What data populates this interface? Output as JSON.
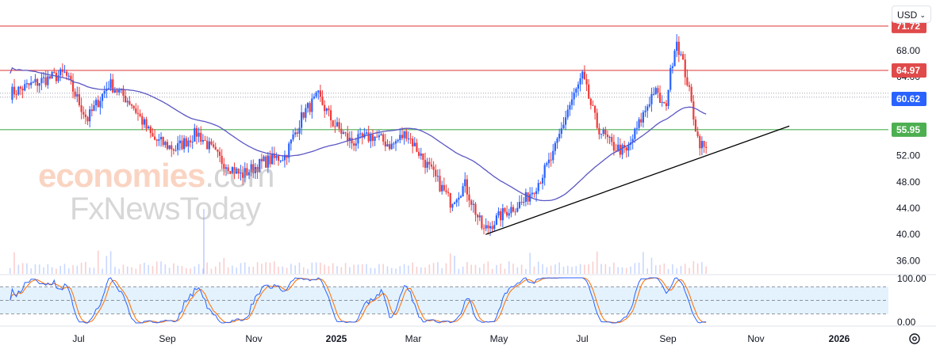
{
  "toolbar": {
    "currency": "USD"
  },
  "watermark": {
    "line1_brand": "economies",
    "line1_suffix": ".com",
    "line2": "FxNewsToday"
  },
  "colors": {
    "resistance": "#e04a4a",
    "support": "#4caf50",
    "ma": "#5b57c4",
    "trend": "#000000",
    "up": "#2962ff",
    "down": "#ef3b3b",
    "stoch_k": "#2962ff",
    "stoch_d": "#ff6d00",
    "osc_band": "#e3f2fd"
  },
  "chart_data": {
    "type": "candlestick",
    "x_ticks": [
      "Jul",
      "Sep",
      "Nov",
      "2025",
      "Mar",
      "May",
      "Jul",
      "Sep",
      "Nov",
      "2026"
    ],
    "y_ticks": [
      "68.00",
      "64.00",
      "60.00",
      "56.00",
      "52.00",
      "48.00",
      "44.00",
      "40.00",
      "36.00"
    ],
    "ylim": [
      34,
      74
    ],
    "horizontal_lines": [
      {
        "label": "71.72",
        "value": 71.72,
        "color": "#e04a4a"
      },
      {
        "label": "64.97",
        "value": 64.97,
        "color": "#e04a4a"
      },
      {
        "label": "55.95",
        "value": 55.95,
        "color": "#4caf50"
      }
    ],
    "last_price": {
      "label": "60.62",
      "value": 60.62
    },
    "moving_average": true,
    "trendline": {
      "from": [
        "Apr 2025",
        40.0
      ],
      "to": [
        "Nov 2025",
        56.5
      ]
    },
    "price_path": [
      {
        "d": "May 2024",
        "v": 61.5
      },
      {
        "d": "Jun 2024",
        "v": 63.5
      },
      {
        "d": "Jun 2024",
        "v": 64.5
      },
      {
        "d": "Jul 2024",
        "v": 57.5
      },
      {
        "d": "Jul 2024",
        "v": 63.0
      },
      {
        "d": "Aug 2024",
        "v": 60.0
      },
      {
        "d": "Aug 2024",
        "v": 54.5
      },
      {
        "d": "Sep 2024",
        "v": 53.0
      },
      {
        "d": "Sep 2024",
        "v": 55.5
      },
      {
        "d": "Oct 2024",
        "v": 51.5
      },
      {
        "d": "Oct 2024",
        "v": 49.0
      },
      {
        "d": "Nov 2024",
        "v": 51.0
      },
      {
        "d": "Nov 2024",
        "v": 52.0
      },
      {
        "d": "Dec 2024",
        "v": 58.5
      },
      {
        "d": "Dec 2024",
        "v": 61.0
      },
      {
        "d": "Dec 2024",
        "v": 57.0
      },
      {
        "d": "Jan 2025",
        "v": 54.0
      },
      {
        "d": "Jan 2025",
        "v": 55.0
      },
      {
        "d": "Feb 2025",
        "v": 53.5
      },
      {
        "d": "Feb 2025",
        "v": 55.5
      },
      {
        "d": "Feb 2025",
        "v": 52.0
      },
      {
        "d": "Mar 2025",
        "v": 48.5
      },
      {
        "d": "Mar 2025",
        "v": 45.0
      },
      {
        "d": "Mar 2025",
        "v": 47.5
      },
      {
        "d": "Apr 2025",
        "v": 40.5
      },
      {
        "d": "Apr 2025",
        "v": 43.5
      },
      {
        "d": "May 2025",
        "v": 45.0
      },
      {
        "d": "May 2025",
        "v": 48.0
      },
      {
        "d": "May 2025",
        "v": 52.0
      },
      {
        "d": "Jun 2025",
        "v": 59.0
      },
      {
        "d": "Jun 2025",
        "v": 64.0
      },
      {
        "d": "Jun 2025",
        "v": 56.5
      },
      {
        "d": "Jul 2025",
        "v": 53.5
      },
      {
        "d": "Jul 2025",
        "v": 52.5
      },
      {
        "d": "Jul 2025",
        "v": 57.5
      },
      {
        "d": "Aug 2025",
        "v": 62.0
      },
      {
        "d": "Aug 2025",
        "v": 59.0
      },
      {
        "d": "Aug 2025",
        "v": 70.0
      },
      {
        "d": "Aug 2025",
        "v": 63.5
      },
      {
        "d": "Sep 2025",
        "v": 54.5
      },
      {
        "d": "Sep 2025",
        "v": 52.0
      },
      {
        "d": "Sep 2025",
        "v": 57.5
      },
      {
        "d": "Sep 2025",
        "v": 60.6
      }
    ],
    "oscillator": {
      "type": "stochastic",
      "y_ticks": [
        "100.00",
        "0.00"
      ],
      "ylim": [
        0,
        100
      ],
      "band": [
        20,
        80
      ]
    }
  }
}
